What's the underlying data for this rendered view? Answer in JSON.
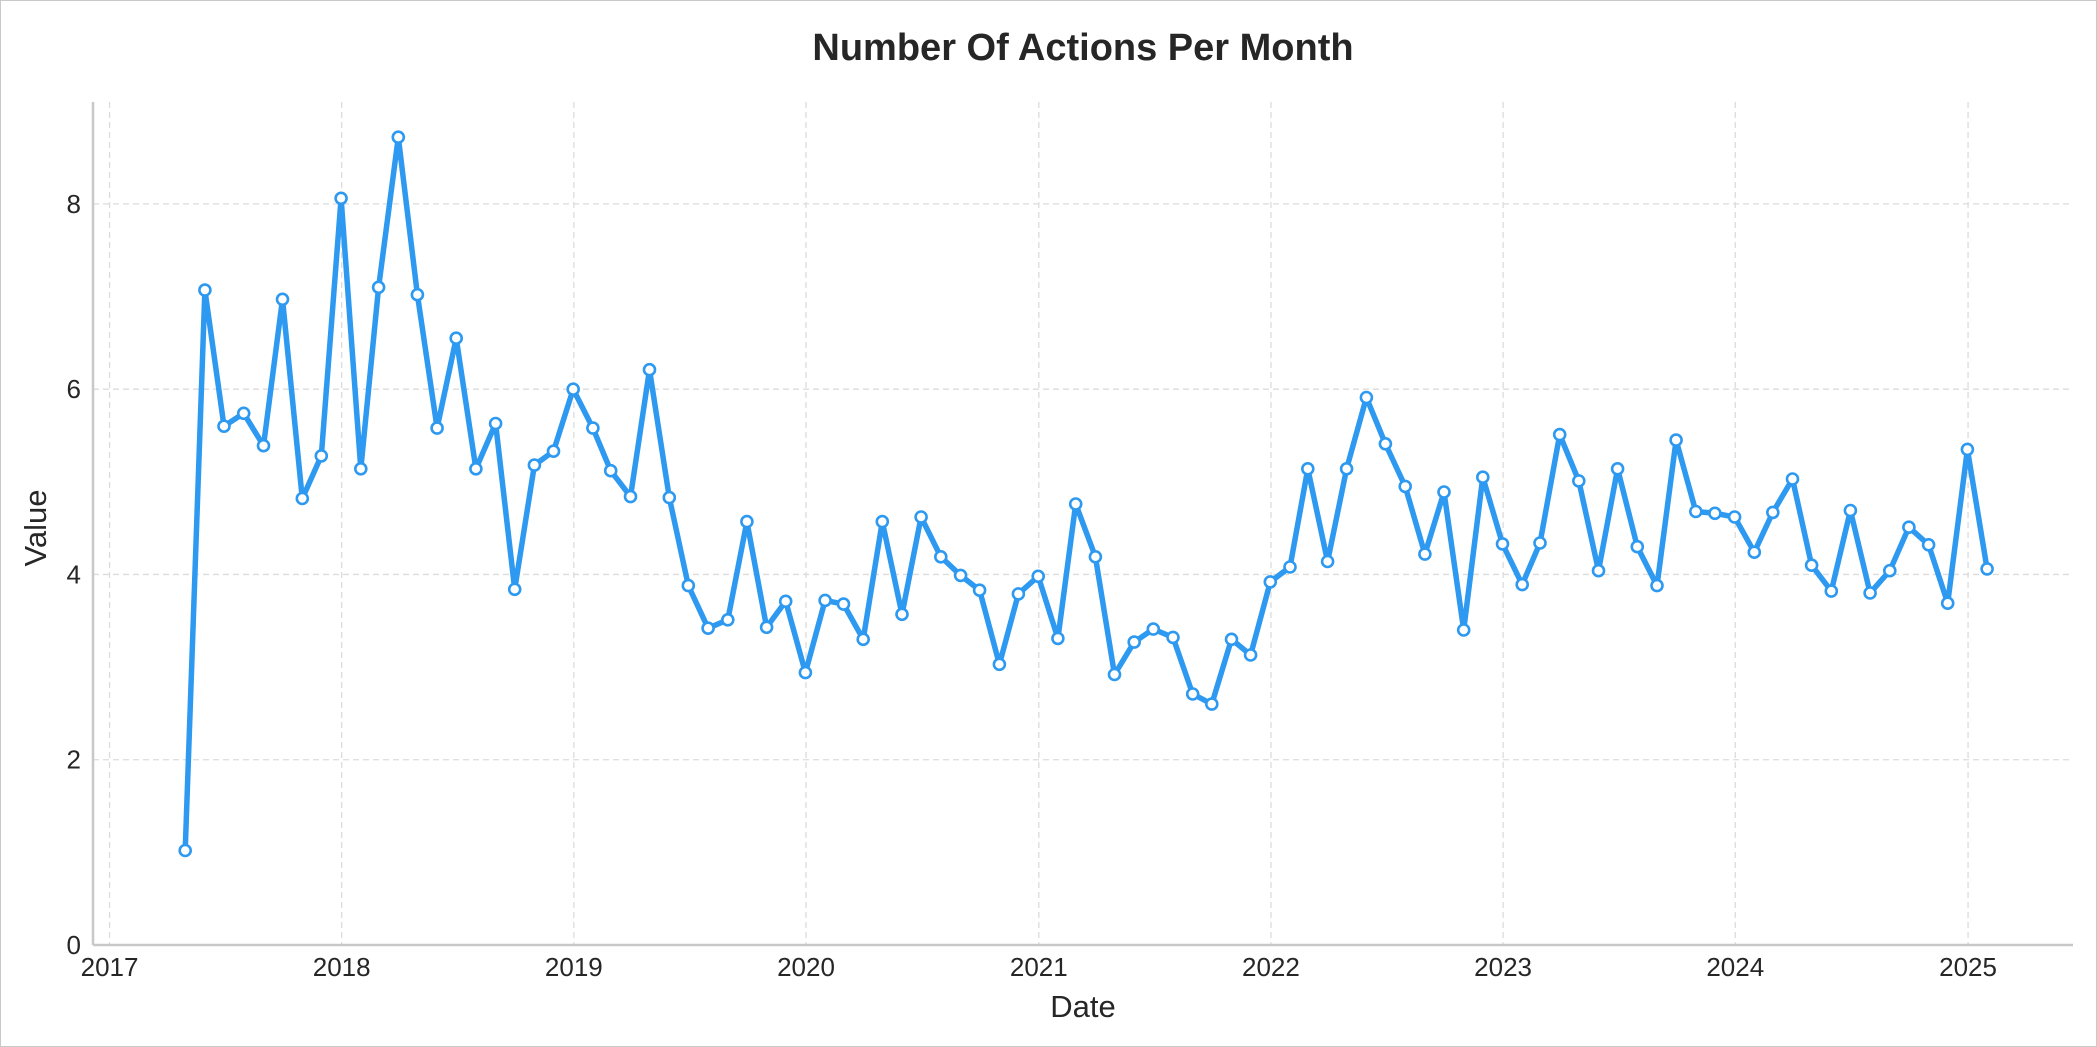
{
  "chart_data": {
    "type": "line",
    "title": "Number Of Actions Per Month",
    "xlabel": "Date",
    "ylabel": "Value",
    "xlim": [
      "2016-12-06",
      "2025-06-15"
    ],
    "ylim": [
      0,
      9.1
    ],
    "x_ticks": [
      {
        "date": "2017-01-01",
        "label": "2017"
      },
      {
        "date": "2018-01-01",
        "label": "2018"
      },
      {
        "date": "2019-01-01",
        "label": "2019"
      },
      {
        "date": "2020-01-01",
        "label": "2020"
      },
      {
        "date": "2021-01-01",
        "label": "2021"
      },
      {
        "date": "2022-01-01",
        "label": "2022"
      },
      {
        "date": "2023-01-01",
        "label": "2023"
      },
      {
        "date": "2024-01-01",
        "label": "2024"
      },
      {
        "date": "2025-01-01",
        "label": "2025"
      }
    ],
    "y_ticks": [
      {
        "value": 0,
        "label": "0"
      },
      {
        "value": 2,
        "label": "2"
      },
      {
        "value": 4,
        "label": "4"
      },
      {
        "value": 6,
        "label": "6"
      },
      {
        "value": 8,
        "label": "8"
      }
    ],
    "grid": true,
    "line_color": "#2e99f0",
    "marker": "open-circle",
    "series": [
      {
        "x": [
          "2017-04-30",
          "2017-05-31",
          "2017-06-30",
          "2017-07-31",
          "2017-08-31",
          "2017-09-30",
          "2017-10-31",
          "2017-11-30",
          "2017-12-31",
          "2018-01-31",
          "2018-02-28",
          "2018-03-31",
          "2018-04-30",
          "2018-05-31",
          "2018-06-30",
          "2018-07-31",
          "2018-08-31",
          "2018-09-30",
          "2018-10-31",
          "2018-11-30",
          "2018-12-31",
          "2019-01-31",
          "2019-02-28",
          "2019-03-31",
          "2019-04-30",
          "2019-05-31",
          "2019-06-30",
          "2019-07-31",
          "2019-08-31",
          "2019-09-30",
          "2019-10-31",
          "2019-11-30",
          "2019-12-31",
          "2020-01-31",
          "2020-02-29",
          "2020-03-31",
          "2020-04-30",
          "2020-05-31",
          "2020-06-30",
          "2020-07-31",
          "2020-08-31",
          "2020-09-30",
          "2020-10-31",
          "2020-11-30",
          "2020-12-31",
          "2021-01-31",
          "2021-02-28",
          "2021-03-31",
          "2021-04-30",
          "2021-05-31",
          "2021-06-30",
          "2021-07-31",
          "2021-08-31",
          "2021-09-30",
          "2021-10-31",
          "2021-11-30",
          "2021-12-31",
          "2022-01-31",
          "2022-02-28",
          "2022-03-31",
          "2022-04-30",
          "2022-05-31",
          "2022-06-30",
          "2022-07-31",
          "2022-08-31",
          "2022-09-30",
          "2022-10-31",
          "2022-11-30",
          "2022-12-31",
          "2023-01-31",
          "2023-02-28",
          "2023-03-31",
          "2023-04-30",
          "2023-05-31",
          "2023-06-30",
          "2023-07-31",
          "2023-08-31",
          "2023-09-30",
          "2023-10-31",
          "2023-11-30",
          "2023-12-31",
          "2024-01-31",
          "2024-02-29",
          "2024-03-31",
          "2024-04-30",
          "2024-05-31",
          "2024-06-30",
          "2024-07-31",
          "2024-08-31",
          "2024-09-30",
          "2024-10-31",
          "2024-11-30",
          "2024-12-31",
          "2025-01-31"
        ],
        "y": [
          1.02,
          7.07,
          5.6,
          5.74,
          5.39,
          6.97,
          4.82,
          5.28,
          8.06,
          5.14,
          7.1,
          8.72,
          7.02,
          5.58,
          6.55,
          5.14,
          5.63,
          3.84,
          5.18,
          5.33,
          6.0,
          5.58,
          5.12,
          4.84,
          6.21,
          4.83,
          3.88,
          3.42,
          3.51,
          4.57,
          3.43,
          3.71,
          2.94,
          3.72,
          3.68,
          3.3,
          4.57,
          3.57,
          4.62,
          4.19,
          3.99,
          3.83,
          3.03,
          3.79,
          3.98,
          3.31,
          4.76,
          4.19,
          2.92,
          3.27,
          3.41,
          3.32,
          2.71,
          2.6,
          3.3,
          3.13,
          3.92,
          4.08,
          5.14,
          4.14,
          5.14,
          5.91,
          5.41,
          4.95,
          4.22,
          4.89,
          3.4,
          5.05,
          4.33,
          3.89,
          4.34,
          5.51,
          5.01,
          4.04,
          5.14,
          4.3,
          3.88,
          5.45,
          4.68,
          4.66,
          4.62,
          4.24,
          4.67,
          5.03,
          4.1,
          3.82,
          4.69,
          3.8,
          4.04,
          4.51,
          4.32,
          3.69,
          5.35,
          4.06
        ]
      }
    ]
  }
}
